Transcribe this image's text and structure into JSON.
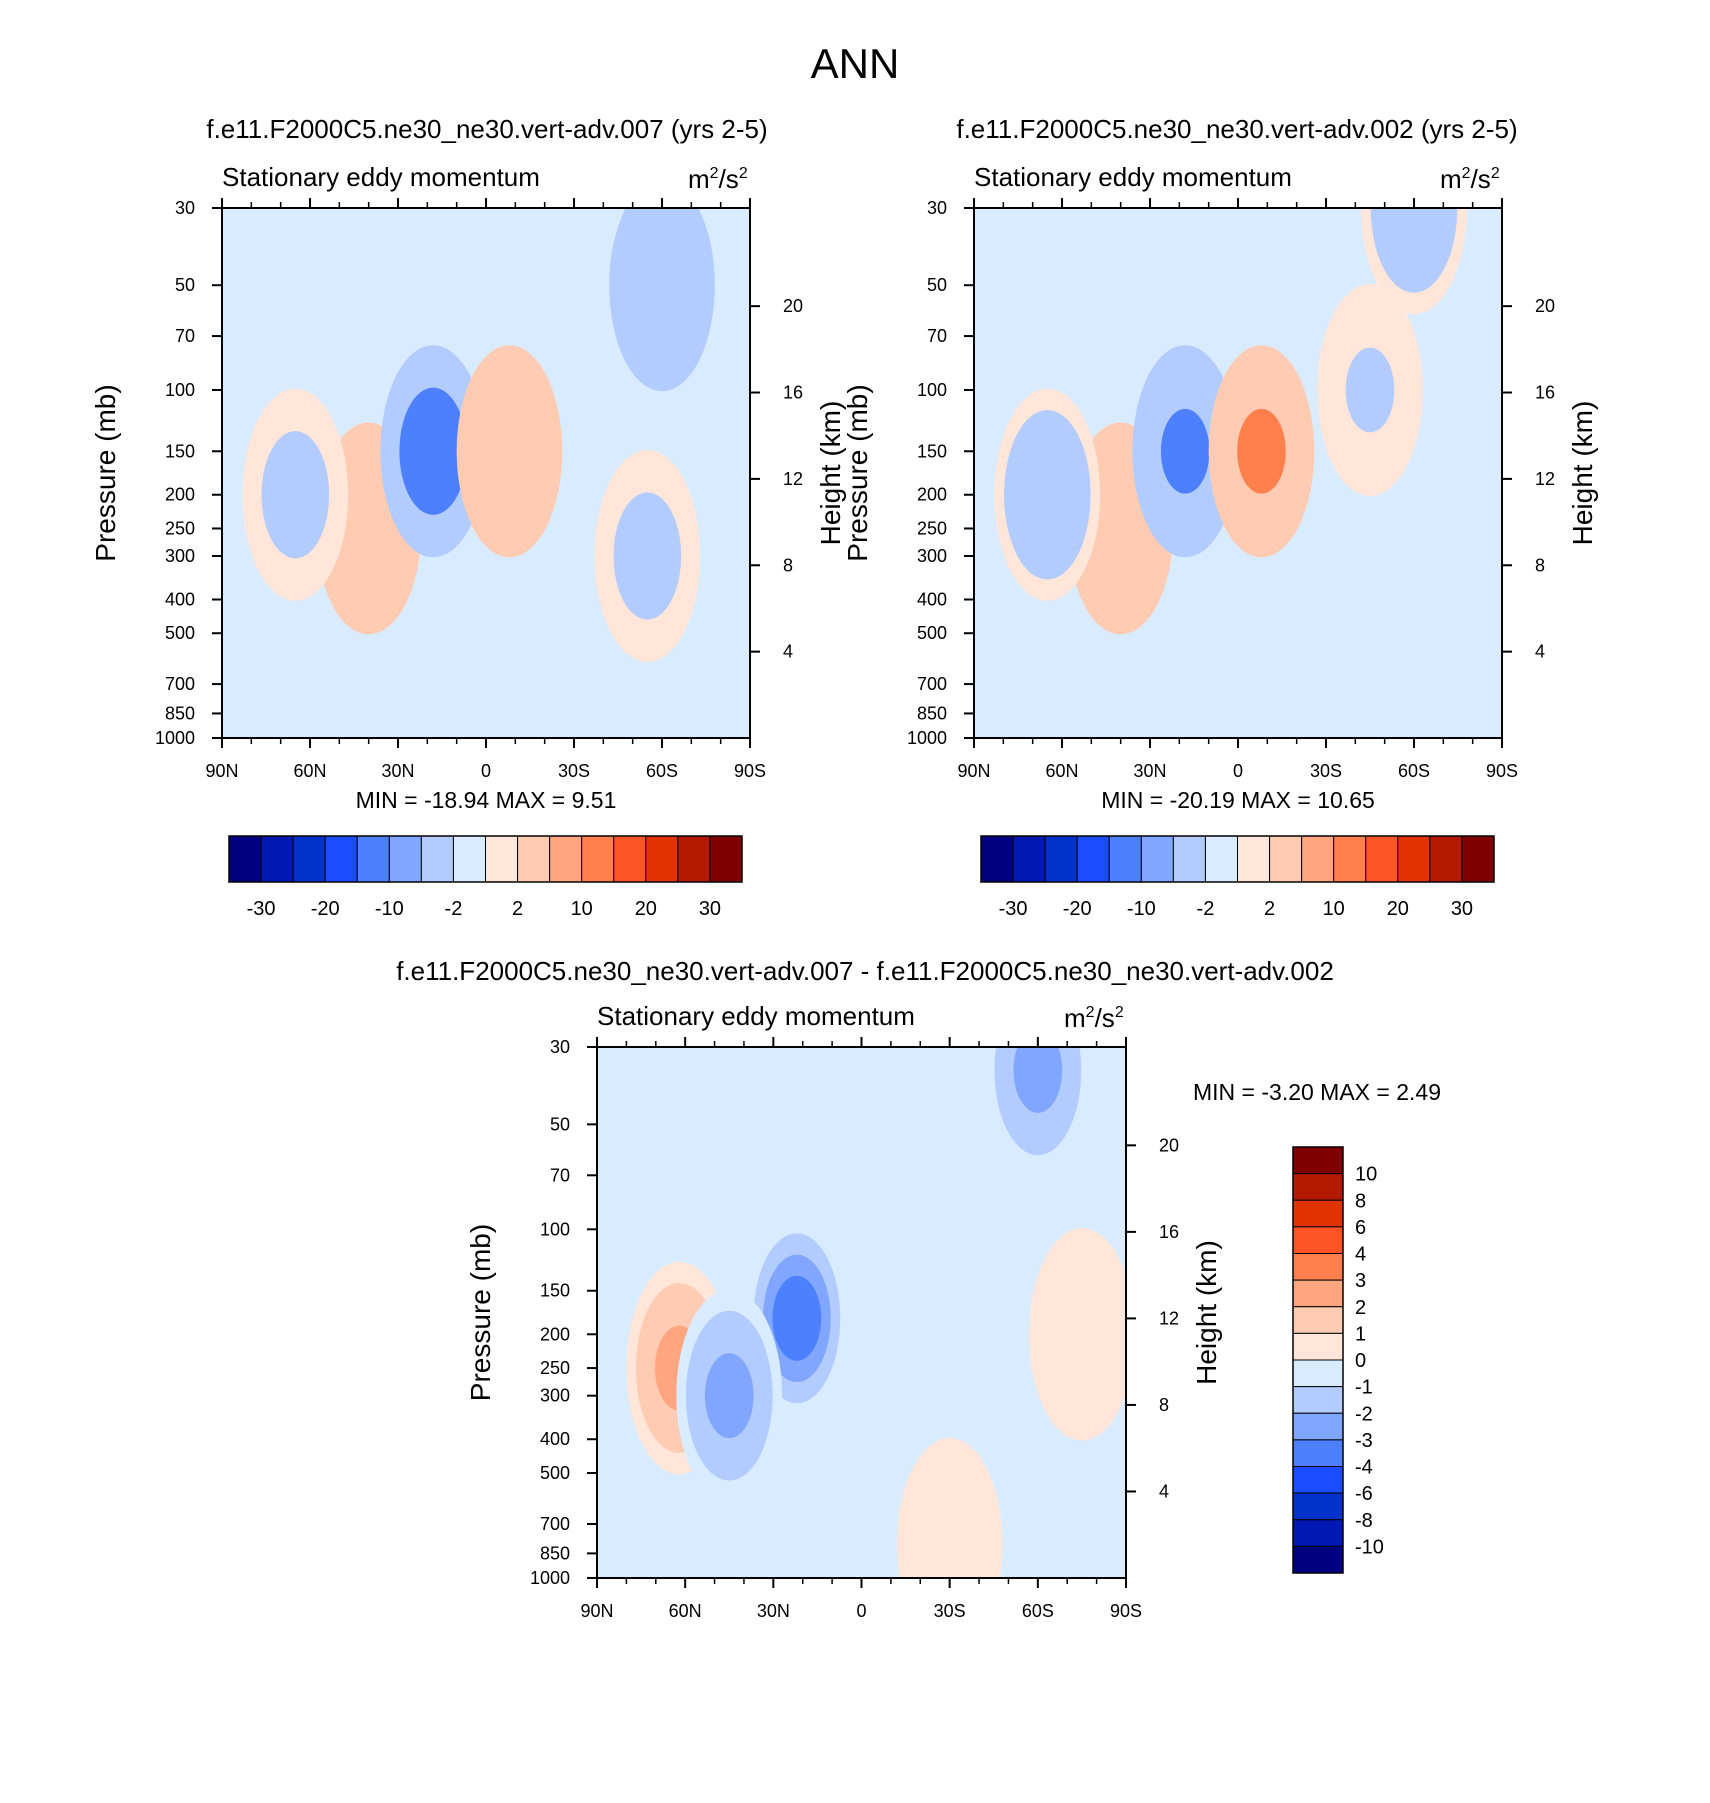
{
  "title": "ANN",
  "colors": {
    "scale": [
      "#000080",
      "#0019b3",
      "#0033cc",
      "#1a4dff",
      "#4d80ff",
      "#80a6ff",
      "#b3ccff",
      "#d9ebff",
      "#ffe6d9",
      "#ffccb3",
      "#ffa680",
      "#ff804d",
      "#ff5426",
      "#e03300",
      "#b31a00",
      "#800000"
    ],
    "frame": "#000000"
  },
  "chart_data": [
    {
      "type": "heatmap",
      "title": "f.e11.F2000C5.ne30_ne30.vert-adv.007 (yrs 2-5)",
      "subtitle": "Stationary eddy momentum",
      "units": "m2/s2",
      "units_base": "m",
      "units_mid": "/s",
      "units_sup": "2",
      "ylabel": "Pressure (mb)",
      "y2label": "Height (km)",
      "x_ticks": [
        "90N",
        "60N",
        "30N",
        "0",
        "30S",
        "60S",
        "90S"
      ],
      "x_values": [
        90,
        60,
        30,
        0,
        -30,
        -60,
        -90
      ],
      "y_ticks": [
        "30",
        "50",
        "70",
        "100",
        "150",
        "200",
        "250",
        "300",
        "400",
        "500",
        "700",
        "850",
        "1000"
      ],
      "y_values": [
        30,
        50,
        70,
        100,
        150,
        200,
        250,
        300,
        400,
        500,
        700,
        850,
        1000
      ],
      "y2_ticks": [
        "20",
        "16",
        "12",
        "8",
        "4"
      ],
      "y2_values": [
        20,
        16,
        12,
        8,
        4
      ],
      "xlim": [
        90,
        -90
      ],
      "ylim": [
        30,
        1000
      ],
      "stats": "MIN = -18.94  MAX =   9.51",
      "min": -18.94,
      "max": 9.51,
      "colorbar_labels": [
        "-30",
        "-20",
        "-10",
        "-2",
        "2",
        "10",
        "20",
        "30"
      ],
      "colorbar_levels": [
        -30,
        -20,
        -10,
        -2,
        2,
        10,
        20,
        30
      ],
      "features": [
        {
          "lat": 40,
          "p": 250,
          "value": 8
        },
        {
          "lat": 18,
          "p": 150,
          "value": -15
        },
        {
          "lat": -8,
          "p": 150,
          "value": 9
        },
        {
          "lat": 65,
          "p": 200,
          "value": -3
        },
        {
          "lat": -60,
          "p": 50,
          "value": -8
        },
        {
          "lat": -55,
          "p": 300,
          "value": -3
        }
      ]
    },
    {
      "type": "heatmap",
      "title": "f.e11.F2000C5.ne30_ne30.vert-adv.002 (yrs 2-5)",
      "subtitle": "Stationary eddy momentum",
      "units": "m2/s2",
      "units_base": "m",
      "units_mid": "/s",
      "units_sup": "2",
      "ylabel": "Pressure (mb)",
      "y2label": "Height (km)",
      "x_ticks": [
        "90N",
        "60N",
        "30N",
        "0",
        "30S",
        "60S",
        "90S"
      ],
      "x_values": [
        90,
        60,
        30,
        0,
        -30,
        -60,
        -90
      ],
      "y_ticks": [
        "30",
        "50",
        "70",
        "100",
        "150",
        "200",
        "250",
        "300",
        "400",
        "500",
        "700",
        "850",
        "1000"
      ],
      "y_values": [
        30,
        50,
        70,
        100,
        150,
        200,
        250,
        300,
        400,
        500,
        700,
        850,
        1000
      ],
      "y2_ticks": [
        "20",
        "16",
        "12",
        "8",
        "4"
      ],
      "y2_values": [
        20,
        16,
        12,
        8,
        4
      ],
      "xlim": [
        90,
        -90
      ],
      "ylim": [
        30,
        1000
      ],
      "stats": "MIN = -20.19  MAX =  10.65",
      "min": -20.19,
      "max": 10.65,
      "colorbar_labels": [
        "-30",
        "-20",
        "-10",
        "-2",
        "2",
        "10",
        "20",
        "30"
      ],
      "colorbar_levels": [
        -30,
        -20,
        -10,
        -2,
        2,
        10,
        20,
        30
      ],
      "features": [
        {
          "lat": 40,
          "p": 250,
          "value": 9
        },
        {
          "lat": 18,
          "p": 150,
          "value": -12
        },
        {
          "lat": -8,
          "p": 150,
          "value": 10
        },
        {
          "lat": 65,
          "p": 200,
          "value": -4
        },
        {
          "lat": -60,
          "p": 30,
          "value": -6
        },
        {
          "lat": -45,
          "p": 100,
          "value": -2
        }
      ]
    },
    {
      "type": "heatmap",
      "title": "f.e11.F2000C5.ne30_ne30.vert-adv.007 - f.e11.F2000C5.ne30_ne30.vert-adv.002",
      "subtitle": "Stationary eddy momentum",
      "units": "m2/s2",
      "units_base": "m",
      "units_mid": "/s",
      "units_sup": "2",
      "ylabel": "Pressure (mb)",
      "y2label": "Height (km)",
      "x_ticks": [
        "90N",
        "60N",
        "30N",
        "0",
        "30S",
        "60S",
        "90S"
      ],
      "x_values": [
        90,
        60,
        30,
        0,
        -30,
        -60,
        -90
      ],
      "y_ticks": [
        "30",
        "50",
        "70",
        "100",
        "150",
        "200",
        "250",
        "300",
        "400",
        "500",
        "700",
        "850",
        "1000"
      ],
      "y_values": [
        30,
        50,
        70,
        100,
        150,
        200,
        250,
        300,
        400,
        500,
        700,
        850,
        1000
      ],
      "y2_ticks": [
        "20",
        "16",
        "12",
        "8",
        "4"
      ],
      "y2_values": [
        20,
        16,
        12,
        8,
        4
      ],
      "xlim": [
        90,
        -90
      ],
      "ylim": [
        30,
        1000
      ],
      "stats": "MIN =  -3.20  MAX =   2.49",
      "min": -3.2,
      "max": 2.49,
      "colorbar_labels": [
        "10",
        "8",
        "6",
        "4",
        "3",
        "2",
        "1",
        "0",
        "-1",
        "-2",
        "-3",
        "-4",
        "-6",
        "-8",
        "-10"
      ],
      "colorbar_levels": [
        10,
        8,
        6,
        4,
        3,
        2,
        1,
        0,
        -1,
        -2,
        -3,
        -4,
        -6,
        -8,
        -10
      ],
      "features": [
        {
          "lat": 62,
          "p": 250,
          "value": 2.4
        },
        {
          "lat": 22,
          "p": 180,
          "value": -3.2
        },
        {
          "lat": 45,
          "p": 300,
          "value": -2.2
        },
        {
          "lat": -60,
          "p": 35,
          "value": -2.5
        },
        {
          "lat": -30,
          "p": 800,
          "value": 0.5
        },
        {
          "lat": -75,
          "p": 200,
          "value": 0.5
        }
      ]
    }
  ]
}
